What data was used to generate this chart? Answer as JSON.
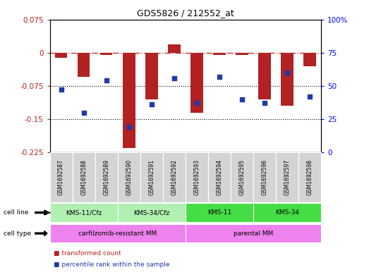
{
  "title": "GDS5826 / 212552_at",
  "samples": [
    "GSM1692587",
    "GSM1692588",
    "GSM1692589",
    "GSM1692590",
    "GSM1692591",
    "GSM1692592",
    "GSM1692593",
    "GSM1692594",
    "GSM1692595",
    "GSM1692596",
    "GSM1692597",
    "GSM1692598"
  ],
  "bar_values": [
    -0.012,
    -0.055,
    -0.005,
    -0.215,
    -0.105,
    0.018,
    -0.135,
    -0.005,
    -0.005,
    -0.105,
    -0.12,
    -0.03
  ],
  "dot_values": [
    0.47,
    0.3,
    0.54,
    0.19,
    0.36,
    0.56,
    0.37,
    0.57,
    0.4,
    0.37,
    0.6,
    0.42
  ],
  "bar_color": "#b22222",
  "dot_color": "#1e3aaa",
  "ylim_left": [
    -0.225,
    0.075
  ],
  "ylim_right": [
    0,
    1.0
  ],
  "yticks_left": [
    0.075,
    0.0,
    -0.075,
    -0.15,
    -0.225
  ],
  "yticks_left_labels": [
    "0.075",
    "0",
    "-0.075",
    "-0.15",
    "-0.225"
  ],
  "yticks_right_vals": [
    1.0,
    0.75,
    0.5,
    0.25,
    0.0
  ],
  "yticks_right_labels": [
    "100%",
    "75",
    "50",
    "25",
    "0"
  ],
  "cell_line_groups": [
    {
      "label": "KMS-11/Cfz",
      "start": 0,
      "end": 3,
      "color": "#b0f0b0"
    },
    {
      "label": "KMS-34/Cfz",
      "start": 3,
      "end": 6,
      "color": "#b0f0b0"
    },
    {
      "label": "KMS-11",
      "start": 6,
      "end": 9,
      "color": "#44dd44"
    },
    {
      "label": "KMS-34",
      "start": 9,
      "end": 12,
      "color": "#44dd44"
    }
  ],
  "cell_type_groups": [
    {
      "label": "carfilzomib-resistant MM",
      "start": 0,
      "end": 6,
      "color": "#ee82ee"
    },
    {
      "label": "parental MM",
      "start": 6,
      "end": 12,
      "color": "#ee82ee"
    }
  ],
  "legend_items": [
    {
      "label": "transformed count",
      "color": "#b22222"
    },
    {
      "label": "percentile rank within the sample",
      "color": "#1e3aaa"
    }
  ],
  "hline_color": "#cc3333",
  "dotted_hlines": [
    -0.075,
    -0.15
  ],
  "background_color": "#ffffff"
}
